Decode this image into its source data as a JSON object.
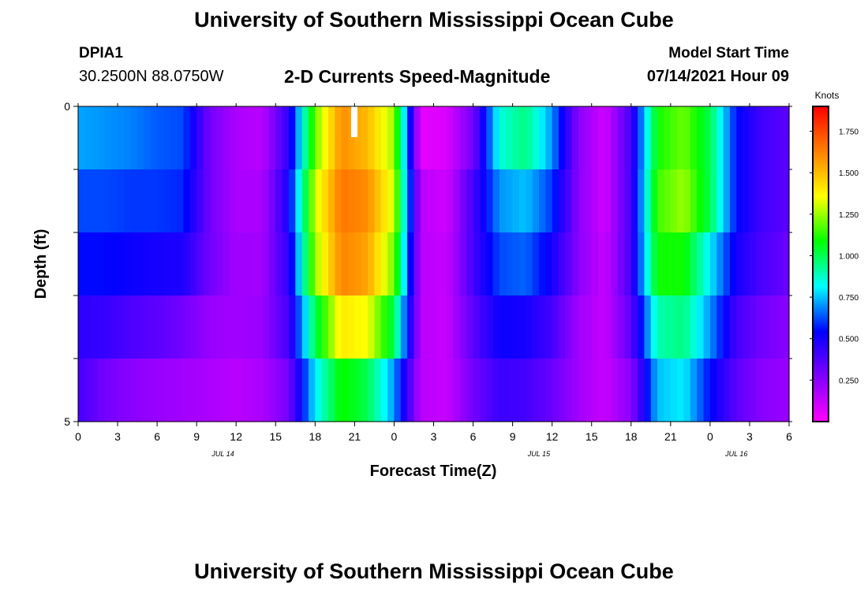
{
  "header": {
    "title": "University of Southern Mississippi Ocean Cube",
    "station_id": "DPIA1",
    "coordinates": "30.2500N  88.0750W",
    "plot_title": "2-D Currents Speed-Magnitude",
    "model_start_label": "Model Start Time",
    "model_start_value": "07/14/2021 Hour 09"
  },
  "footer": {
    "title": "University of Southern Mississippi Ocean Cube"
  },
  "chart_data": {
    "type": "heatmap",
    "title": "2-D Currents Speed-Magnitude",
    "xlabel": "Forecast Time(Z)",
    "ylabel": "Depth (ft)",
    "xlim": [
      0,
      54
    ],
    "ylim": [
      0,
      5
    ],
    "x_tick_labels": [
      "0",
      "3",
      "6",
      "9",
      "12",
      "15",
      "18",
      "21",
      "0",
      "3",
      "6",
      "9",
      "12",
      "15",
      "18",
      "21",
      "0",
      "3",
      "6"
    ],
    "y_tick_labels": [
      "0",
      "5"
    ],
    "date_labels": [
      {
        "hour": 11,
        "text": "JUL 14"
      },
      {
        "hour": 35,
        "text": "JUL 15"
      },
      {
        "hour": 50,
        "text": "JUL 16"
      }
    ],
    "colorbar": {
      "unit": "Knots",
      "min": 0,
      "max": 1.9,
      "tick_labels": [
        "0.250",
        "0.500",
        "0.750",
        "1.000",
        "1.250",
        "1.500",
        "1.750"
      ],
      "tick_values": [
        0.25,
        0.5,
        0.75,
        1.0,
        1.25,
        1.5,
        1.75
      ],
      "stops": [
        "#ff00ff",
        "#8000ff",
        "#0000ff",
        "#00ffff",
        "#00ff00",
        "#ffff00",
        "#ff8000",
        "#ff0000"
      ]
    },
    "time_hours": [
      0,
      2,
      4,
      6,
      8,
      10,
      12,
      14,
      16,
      18,
      20,
      22,
      24,
      26,
      28,
      30,
      32,
      34,
      36,
      38,
      40,
      42,
      44,
      46,
      48,
      50,
      52,
      54
    ],
    "depths_ft": [
      0.5,
      1.5,
      2.5,
      3.5,
      4.5
    ],
    "speed_knots": [
      [
        0.72,
        0.7,
        0.68,
        0.64,
        0.62,
        0.3,
        0.18,
        0.15,
        0.45,
        1.2,
        1.6,
        1.5,
        1.25,
        0.05,
        0.08,
        0.3,
        0.85,
        0.95,
        0.7,
        0.25,
        0.1,
        0.4,
        1.1,
        1.2,
        1.0,
        0.55,
        0.4,
        0.35
      ],
      [
        0.62,
        0.62,
        0.6,
        0.6,
        0.58,
        0.3,
        0.18,
        0.18,
        0.5,
        1.3,
        1.65,
        1.6,
        1.3,
        0.15,
        0.1,
        0.4,
        0.7,
        0.75,
        0.6,
        0.25,
        0.1,
        0.4,
        1.15,
        1.25,
        1.0,
        0.55,
        0.4,
        0.35
      ],
      [
        0.55,
        0.55,
        0.52,
        0.5,
        0.48,
        0.3,
        0.2,
        0.2,
        0.45,
        1.25,
        1.62,
        1.55,
        1.2,
        0.15,
        0.12,
        0.4,
        0.62,
        0.65,
        0.5,
        0.25,
        0.12,
        0.4,
        1.1,
        1.1,
        0.8,
        0.5,
        0.38,
        0.32
      ],
      [
        0.45,
        0.43,
        0.38,
        0.35,
        0.3,
        0.22,
        0.2,
        0.22,
        0.4,
        1.0,
        1.4,
        1.35,
        1.0,
        0.15,
        0.12,
        0.35,
        0.52,
        0.5,
        0.4,
        0.2,
        0.12,
        0.35,
        0.9,
        0.95,
        0.7,
        0.4,
        0.3,
        0.25
      ],
      [
        0.4,
        0.3,
        0.25,
        0.22,
        0.2,
        0.18,
        0.15,
        0.18,
        0.3,
        0.8,
        1.1,
        1.0,
        0.7,
        0.15,
        0.12,
        0.3,
        0.42,
        0.4,
        0.32,
        0.2,
        0.12,
        0.25,
        0.75,
        0.8,
        0.55,
        0.35,
        0.25,
        0.22
      ]
    ]
  }
}
